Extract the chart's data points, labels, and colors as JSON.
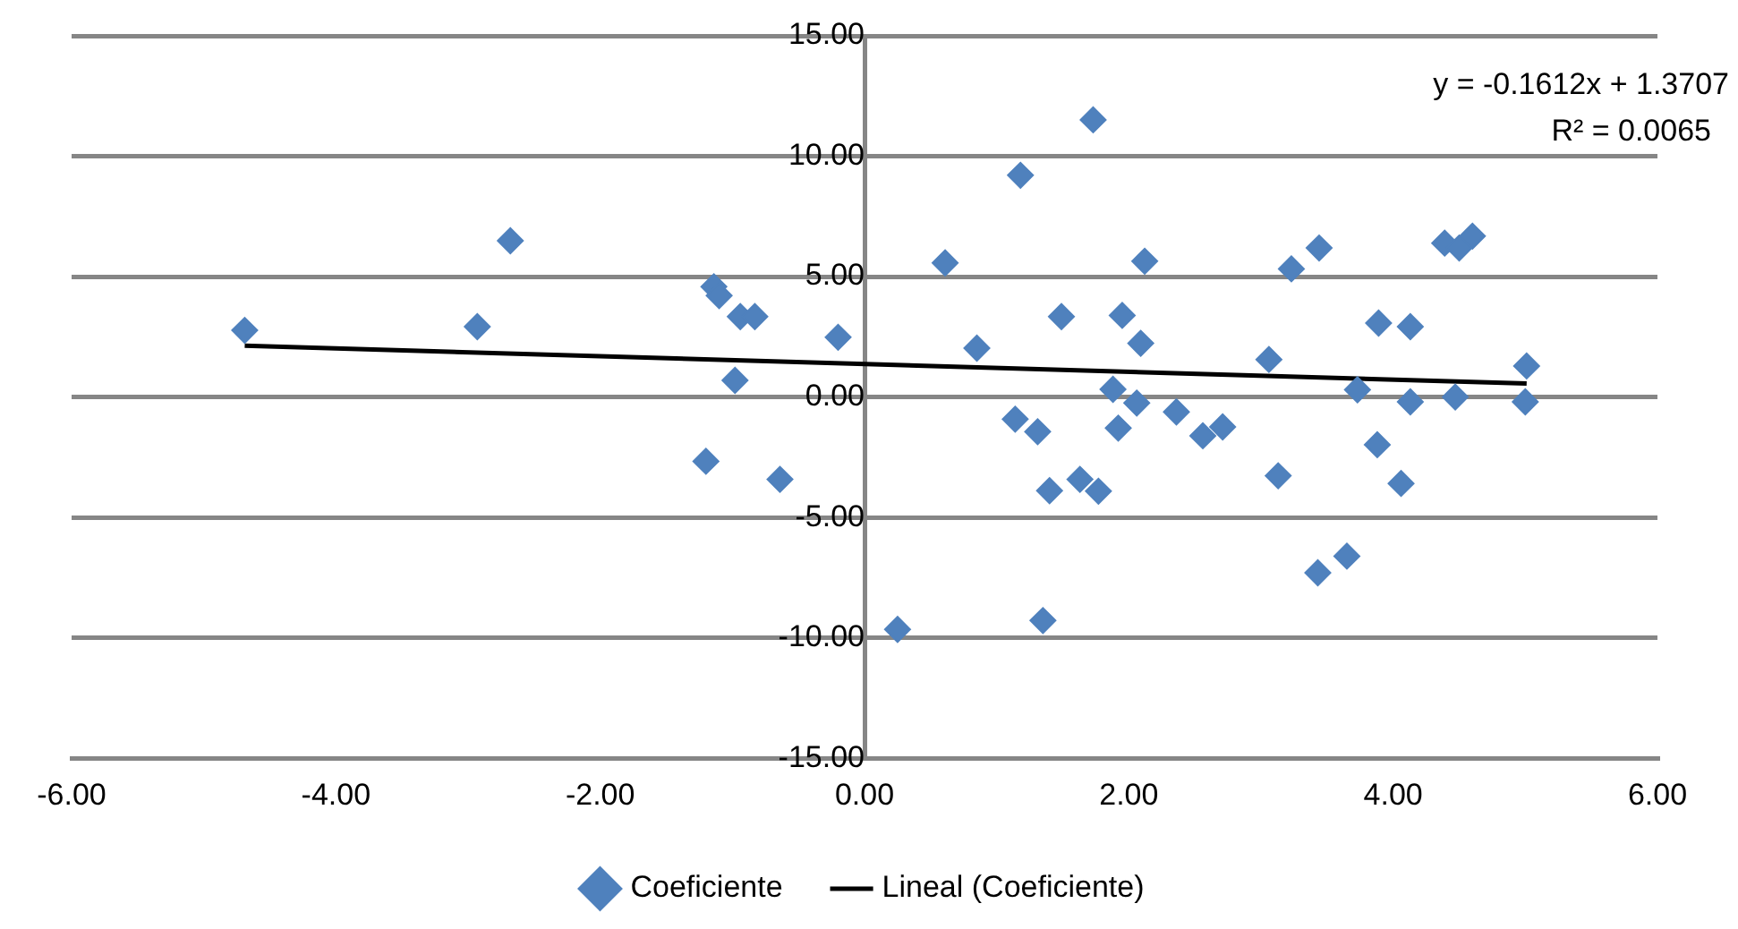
{
  "chart_data": {
    "type": "scatter",
    "marker": "diamond",
    "grid": "y",
    "legend": "bottom",
    "xlim": [
      -6,
      6
    ],
    "ylim": [
      -15,
      15
    ],
    "xticks": [
      {
        "value": -6,
        "label": "-6.00"
      },
      {
        "value": -4,
        "label": "-4.00"
      },
      {
        "value": -2,
        "label": "-2.00"
      },
      {
        "value": 0,
        "label": "0.00"
      },
      {
        "value": 2,
        "label": "2.00"
      },
      {
        "value": 4,
        "label": "4.00"
      },
      {
        "value": 6,
        "label": "6.00"
      }
    ],
    "yticks": [
      {
        "value": -15,
        "label": "-15.00"
      },
      {
        "value": -10,
        "label": "-10.00"
      },
      {
        "value": -5,
        "label": "-5.00"
      },
      {
        "value": 0,
        "label": "0.00"
      },
      {
        "value": 5,
        "label": "5.00"
      },
      {
        "value": 10,
        "label": "10.00"
      },
      {
        "value": 15,
        "label": "15.00"
      }
    ],
    "annotations": [
      "y = -0.1612x + 1.3707",
      "R² = 0.0065"
    ],
    "series": [
      {
        "name": "Coeficiente",
        "type": "scatter",
        "color": "#4f81bd",
        "x": [
          -4.69,
          -2.93,
          -2.68,
          -1.14,
          -1.1,
          -0.94,
          -0.83,
          -0.98,
          -0.2,
          -1.2,
          -0.64,
          1.73,
          1.18,
          0.61,
          2.12,
          1.49,
          1.95,
          0.85,
          2.09,
          3.06,
          3.44,
          3.23,
          4.39,
          4.5,
          4.6,
          3.89,
          4.13,
          5.01,
          3.73,
          1.88,
          2.06,
          4.13,
          4.47,
          5.0,
          1.14,
          1.31,
          1.92,
          2.36,
          2.56,
          2.71,
          3.88,
          4.06,
          3.13,
          1.63,
          1.77,
          1.4,
          3.65,
          3.43,
          1.35,
          0.25
        ],
        "values": [
          2.77,
          2.92,
          6.49,
          4.58,
          4.21,
          3.34,
          3.34,
          0.69,
          2.48,
          -2.67,
          -3.42,
          11.51,
          9.21,
          5.57,
          5.64,
          3.34,
          3.39,
          2.03,
          2.23,
          1.56,
          6.19,
          5.32,
          6.39,
          6.19,
          6.68,
          3.07,
          2.92,
          1.29,
          0.3,
          0.32,
          -0.25,
          -0.2,
          0.0,
          -0.2,
          -0.92,
          -1.44,
          -1.29,
          -0.62,
          -1.61,
          -1.24,
          -1.98,
          -3.59,
          -3.27,
          -3.42,
          -3.91,
          -3.89,
          -6.61,
          -7.3,
          -9.28,
          -9.65
        ]
      },
      {
        "name": "Lineal (Coeficiente)",
        "type": "line",
        "color": "#000000",
        "marker": "none",
        "x": [
          -4.69,
          5.01
        ],
        "values": [
          2.13,
          0.56
        ]
      }
    ]
  }
}
